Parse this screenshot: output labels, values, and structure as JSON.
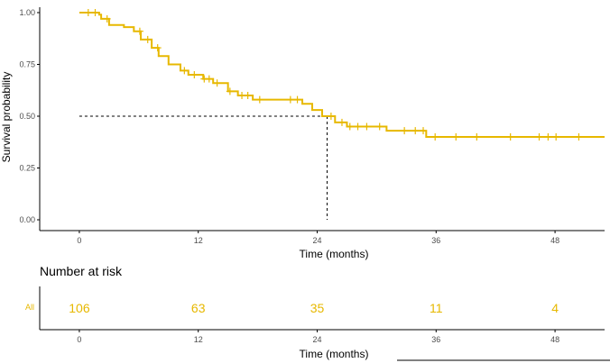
{
  "colors": {
    "curve": "#E7B800",
    "axis": "#000000",
    "tick_text": "#4d4d4d",
    "median": "#000000"
  },
  "chart_data": {
    "type": "line",
    "subtype": "kaplan-meier-step",
    "title": "",
    "xlabel": "Time (months)",
    "ylabel": "Survival probability",
    "xlim": [
      -4,
      53
    ],
    "ylim": [
      0,
      1
    ],
    "x_ticks": [
      0,
      12,
      24,
      36,
      48
    ],
    "y_ticks": [
      0,
      0.25,
      0.5,
      0.75,
      1.0
    ],
    "y_tick_labels": [
      "0.00",
      "0.25",
      "0.50",
      "0.75",
      "1.00"
    ],
    "grid": false,
    "series": [
      {
        "name": "All",
        "steps": [
          [
            0,
            1.0
          ],
          [
            2.0,
            0.99
          ],
          [
            2.2,
            0.97
          ],
          [
            3.0,
            0.94
          ],
          [
            4.5,
            0.93
          ],
          [
            5.5,
            0.91
          ],
          [
            6.2,
            0.87
          ],
          [
            7.3,
            0.83
          ],
          [
            8.0,
            0.79
          ],
          [
            9.0,
            0.75
          ],
          [
            10.2,
            0.72
          ],
          [
            11.0,
            0.7
          ],
          [
            12.5,
            0.68
          ],
          [
            13.5,
            0.66
          ],
          [
            15.0,
            0.62
          ],
          [
            16.0,
            0.6
          ],
          [
            17.5,
            0.58
          ],
          [
            22.5,
            0.56
          ],
          [
            23.5,
            0.53
          ],
          [
            24.5,
            0.5
          ],
          [
            25.8,
            0.47
          ],
          [
            27.0,
            0.45
          ],
          [
            31.0,
            0.43
          ],
          [
            35.0,
            0.4
          ],
          [
            53.0,
            0.4
          ]
        ],
        "censor_times": [
          0.9,
          1.6,
          2.8,
          6.1,
          6.9,
          7.9,
          10.6,
          11.6,
          12.6,
          13.1,
          13.9,
          15.2,
          16.4,
          17.0,
          18.2,
          21.3,
          22.0,
          25.4,
          26.5,
          27.3,
          28.1,
          29.0,
          30.3,
          32.8,
          33.9,
          34.7,
          35.9,
          38.0,
          40.1,
          43.5,
          46.4,
          47.3,
          48.1,
          50.4
        ]
      }
    ],
    "median": {
      "time": 25,
      "survival": 0.5
    },
    "risk_table": {
      "title": "Number at risk",
      "strata_label": "All",
      "xlabel": "Time (months)",
      "times": [
        0,
        12,
        24,
        36,
        48
      ],
      "counts": [
        "106",
        "63",
        "35",
        "11",
        "4"
      ]
    }
  }
}
